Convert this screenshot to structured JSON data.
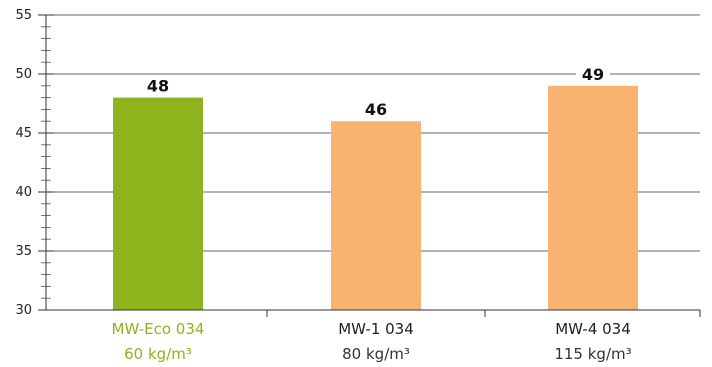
{
  "chart_data": {
    "type": "bar",
    "categories": [
      "MW-Eco 034",
      "MW-1 034",
      "MW-4 034"
    ],
    "category_sublabels": [
      "60 kg/m³",
      "80 kg/m³",
      "115 kg/m³"
    ],
    "values": [
      48,
      46,
      49
    ],
    "data_labels": [
      "48",
      "46",
      "49"
    ],
    "title": "",
    "xlabel": "",
    "ylabel": "",
    "ylim": [
      30,
      55
    ],
    "y_ticks": [
      30,
      35,
      40,
      45,
      50,
      55
    ],
    "y_tick_labels": [
      "30",
      "35",
      "40",
      "45",
      "50",
      "55"
    ],
    "minor_tick_step": 1,
    "grid": true,
    "legend": "none",
    "colors": {
      "highlight_bar": "#8db41d",
      "bar": "#f9b371",
      "highlight_label": "#8db41d",
      "label": "#222222",
      "sublabel": "#333333",
      "gridline": "#333333"
    },
    "highlight_index": 0
  }
}
